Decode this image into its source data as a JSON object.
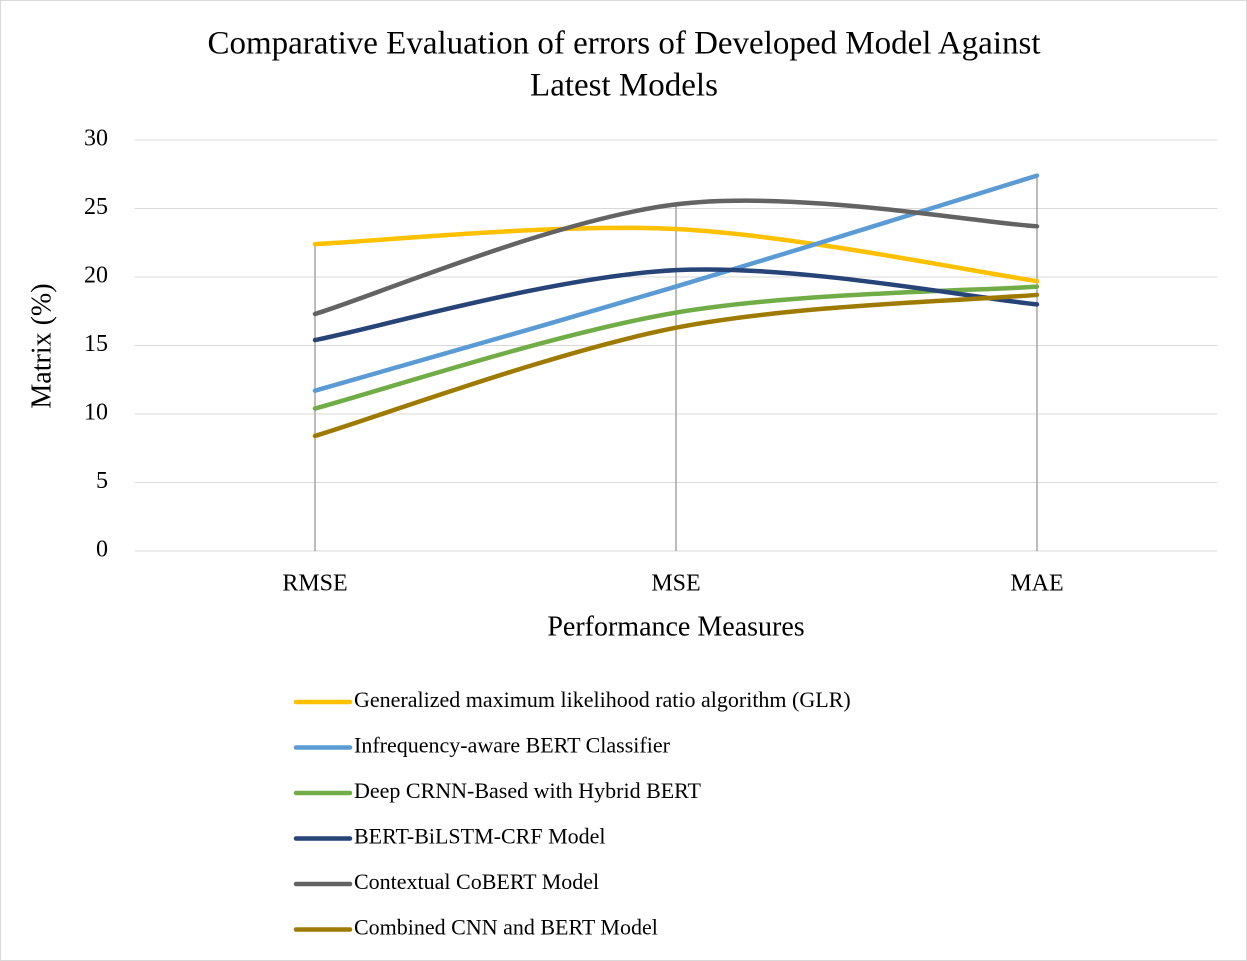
{
  "chart_data": {
    "type": "line",
    "title": [
      "Comparative Evaluation of errors of Developed Model Against",
      "Latest Models"
    ],
    "x_label": "Performance Measures",
    "y_label": "Matrix (%)",
    "categories": [
      "RMSE",
      "MSE",
      "MAE"
    ],
    "series": [
      {
        "name": "Generalized maximum likelihood ratio algorithm (GLR)",
        "color": "#ffc000",
        "values": [
          22.4,
          23.5,
          19.7
        ]
      },
      {
        "name": "Infrequency-aware BERT Classifier",
        "color": "#5b9bd5",
        "values": [
          11.7,
          19.3,
          27.4
        ]
      },
      {
        "name": "Deep CRNN-Based with Hybrid BERT",
        "color": "#70ad47",
        "values": [
          10.4,
          17.4,
          19.3
        ]
      },
      {
        "name": "BERT-BiLSTM-CRF Model",
        "color": "#264478",
        "values": [
          15.4,
          20.5,
          18.0
        ]
      },
      {
        "name": "Contextual CoBERT Model",
        "color": "#636363",
        "values": [
          17.3,
          25.3,
          23.7
        ]
      },
      {
        "name": "Combined CNN and BERT Model",
        "color": "#9e7b00",
        "values": [
          8.4,
          16.3,
          18.7
        ]
      }
    ],
    "ylim": [
      0,
      30
    ],
    "yticks": [
      0,
      5,
      10,
      15,
      20,
      25,
      30
    ],
    "grid": true,
    "smooth": true,
    "legend": "bottom"
  }
}
